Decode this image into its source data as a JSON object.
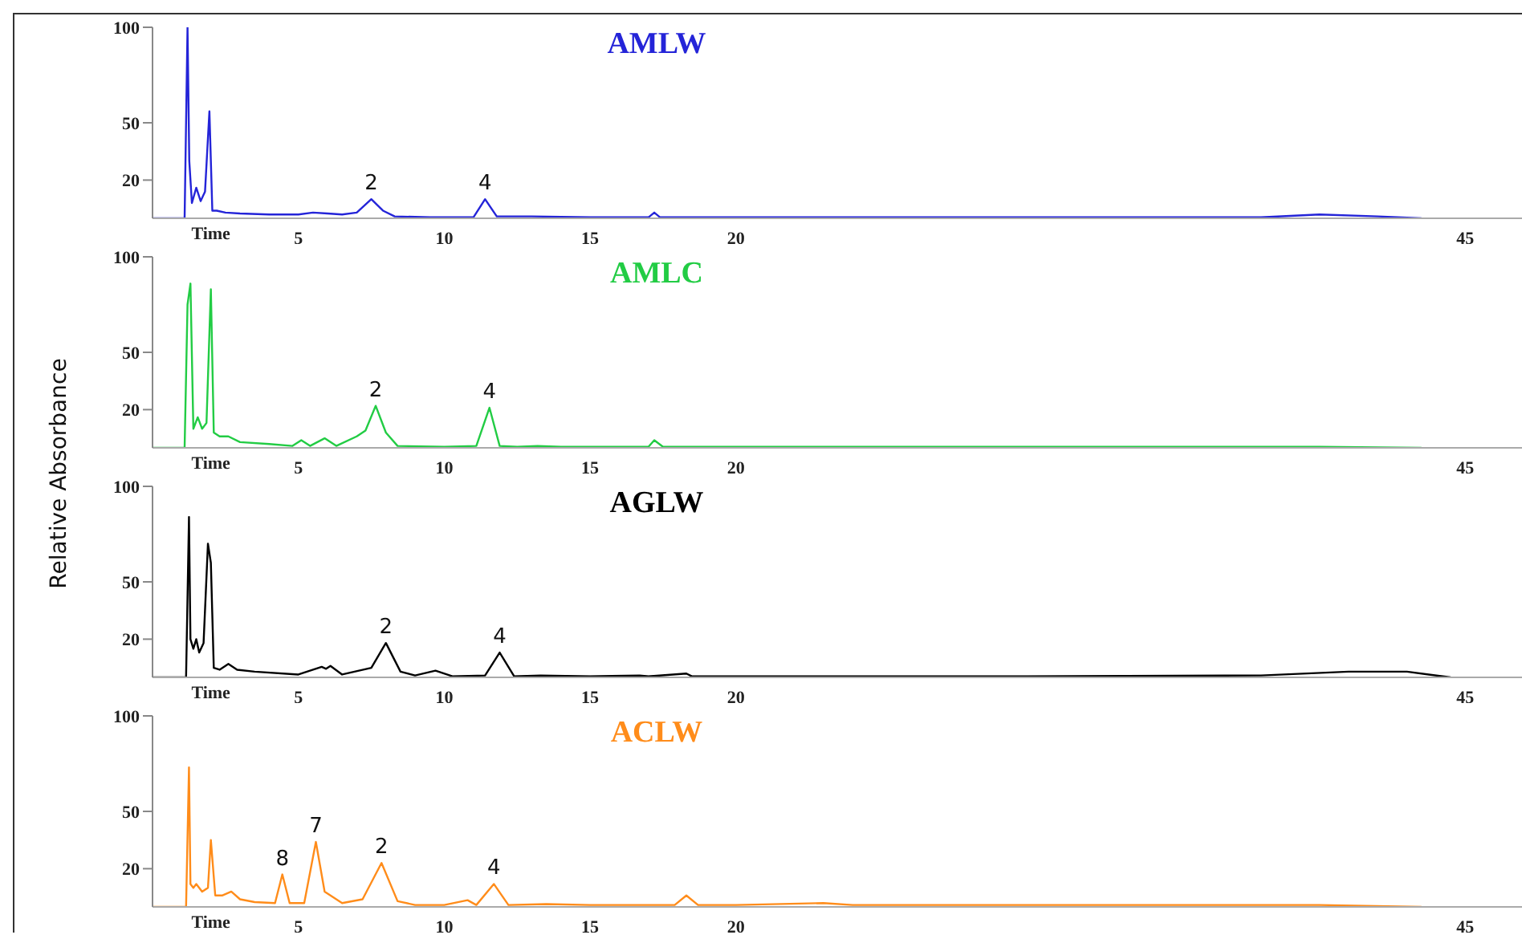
{
  "chart_data": [
    {
      "type": "line",
      "title": "AMLW",
      "xlabel": "Time",
      "xlim": [
        0,
        47
      ],
      "xticks": [
        5,
        10,
        15,
        20,
        45
      ],
      "ylim": [
        0,
        100
      ],
      "yticks": [
        20,
        50,
        100
      ],
      "grid": false,
      "legend": false,
      "marker": "none",
      "x": [
        0,
        1.1,
        1.2,
        1.26,
        1.35,
        1.5,
        1.65,
        1.8,
        1.95,
        2.05,
        2.2,
        2.5,
        3.0,
        4.0,
        5.0,
        5.5,
        6.0,
        6.5,
        7.0,
        7.5,
        7.9,
        8.3,
        9.5,
        11.0,
        11.4,
        11.8,
        13.0,
        15.0,
        17.0,
        17.2,
        17.4,
        20,
        30,
        38,
        40,
        42,
        43.5
      ],
      "series": [
        {
          "color": "#2424d8",
          "values": [
            0,
            0,
            100,
            30,
            8,
            16,
            9,
            14,
            56,
            4,
            4,
            3,
            2.5,
            2,
            2,
            3,
            2.5,
            2,
            3,
            10,
            4,
            1,
            0.5,
            0.5,
            10,
            1,
            1,
            0.5,
            0.5,
            3,
            0.5,
            0.5,
            0.5,
            0.5,
            2,
            1,
            0
          ]
        }
      ],
      "annotations": [
        {
          "text": "2",
          "x": 7.5,
          "y": 10
        },
        {
          "text": "4",
          "x": 11.4,
          "y": 10
        }
      ]
    },
    {
      "type": "line",
      "title": "AMLC",
      "xlabel": "Time",
      "ylabel": "Relative Absorbance",
      "xlim": [
        0,
        47
      ],
      "xticks": [
        5,
        10,
        15,
        20,
        45
      ],
      "ylim": [
        0,
        100
      ],
      "yticks": [
        20,
        50,
        100
      ],
      "grid": false,
      "legend": false,
      "marker": "none",
      "x": [
        0,
        1.1,
        1.2,
        1.3,
        1.4,
        1.55,
        1.7,
        1.85,
        1.95,
        2.0,
        2.1,
        2.3,
        2.6,
        3.0,
        4.0,
        4.8,
        5.1,
        5.4,
        5.9,
        6.3,
        7.0,
        7.3,
        7.65,
        8.0,
        8.4,
        10,
        11.1,
        11.55,
        11.9,
        12.5,
        13.2,
        14,
        17.0,
        17.2,
        17.5,
        20,
        30,
        40,
        43.5
      ],
      "series": [
        {
          "color": "#22cc44",
          "values": [
            0,
            0,
            75,
            86,
            10,
            16,
            10,
            13,
            60,
            83,
            8,
            6,
            6,
            3,
            2,
            1,
            4,
            1,
            5,
            1,
            6,
            9,
            22,
            8,
            1,
            0.5,
            1,
            21,
            1,
            0.5,
            1,
            0.5,
            0.5,
            4,
            0.5,
            0.5,
            0.5,
            0.5,
            0
          ]
        }
      ],
      "annotations": [
        {
          "text": "2",
          "x": 7.65,
          "y": 22
        },
        {
          "text": "4",
          "x": 11.55,
          "y": 21
        }
      ]
    },
    {
      "type": "line",
      "title": "AGLW",
      "xlabel": "Time",
      "xlim": [
        0,
        47
      ],
      "xticks": [
        5,
        10,
        15,
        20,
        45
      ],
      "ylim": [
        0,
        100
      ],
      "yticks": [
        20,
        50,
        100
      ],
      "grid": false,
      "legend": false,
      "marker": "none",
      "x": [
        0,
        1.15,
        1.25,
        1.3,
        1.4,
        1.5,
        1.6,
        1.75,
        1.9,
        2.0,
        2.1,
        2.3,
        2.6,
        2.9,
        3.5,
        5.0,
        5.8,
        5.95,
        6.1,
        6.5,
        7.5,
        8.0,
        8.5,
        9.0,
        9.7,
        10.3,
        11.4,
        11.9,
        12.4,
        13.3,
        15,
        16.7,
        17,
        18.3,
        18.5,
        20,
        30,
        38,
        41,
        43,
        44.5
      ],
      "series": [
        {
          "color": "#000000",
          "values": [
            0,
            0,
            84,
            20,
            15,
            20,
            13,
            18,
            70,
            60,
            5,
            4,
            7,
            4,
            3,
            1.5,
            5.5,
            4.5,
            6,
            1.5,
            5,
            18,
            3,
            1,
            3.5,
            0.5,
            1,
            13,
            0.5,
            1,
            0.5,
            1,
            0.5,
            2,
            0.5,
            0.5,
            0.5,
            1,
            3,
            3,
            0
          ]
        }
      ],
      "annotations": [
        {
          "text": "2",
          "x": 8.0,
          "y": 18
        },
        {
          "text": "4",
          "x": 11.9,
          "y": 13
        }
      ]
    },
    {
      "type": "line",
      "title": "ACLW",
      "xlabel": "Time",
      "xlim": [
        0,
        47
      ],
      "xticks": [
        5,
        10,
        15,
        20,
        45
      ],
      "ylim": [
        0,
        100
      ],
      "yticks": [
        20,
        50,
        100
      ],
      "grid": false,
      "legend": false,
      "marker": "none",
      "x": [
        0,
        1.15,
        1.25,
        1.3,
        1.4,
        1.5,
        1.7,
        1.9,
        2.0,
        2.15,
        2.4,
        2.7,
        3.0,
        3.5,
        4.2,
        4.45,
        4.7,
        5.2,
        5.6,
        5.9,
        6.5,
        7.2,
        7.85,
        8.4,
        9.0,
        10.0,
        10.8,
        11.1,
        11.7,
        12.2,
        13.5,
        15,
        17.9,
        18.3,
        18.7,
        20,
        23,
        24,
        30,
        40,
        43.5
      ],
      "series": [
        {
          "color": "#ff8c1a",
          "values": [
            0,
            0,
            73,
            12,
            10,
            12,
            8,
            10,
            35,
            6,
            6,
            8,
            4,
            2.5,
            2,
            17,
            2,
            2,
            34,
            8,
            2,
            4,
            23,
            3,
            1,
            1,
            3.5,
            1,
            12,
            1,
            1.5,
            1,
            1,
            6,
            1,
            1,
            2,
            1,
            1,
            1,
            0
          ]
        }
      ],
      "annotations": [
        {
          "text": "8",
          "x": 4.45,
          "y": 17
        },
        {
          "text": "7",
          "x": 5.6,
          "y": 34
        },
        {
          "text": "2",
          "x": 7.85,
          "y": 23
        },
        {
          "text": "4",
          "x": 11.7,
          "y": 12
        }
      ]
    }
  ]
}
